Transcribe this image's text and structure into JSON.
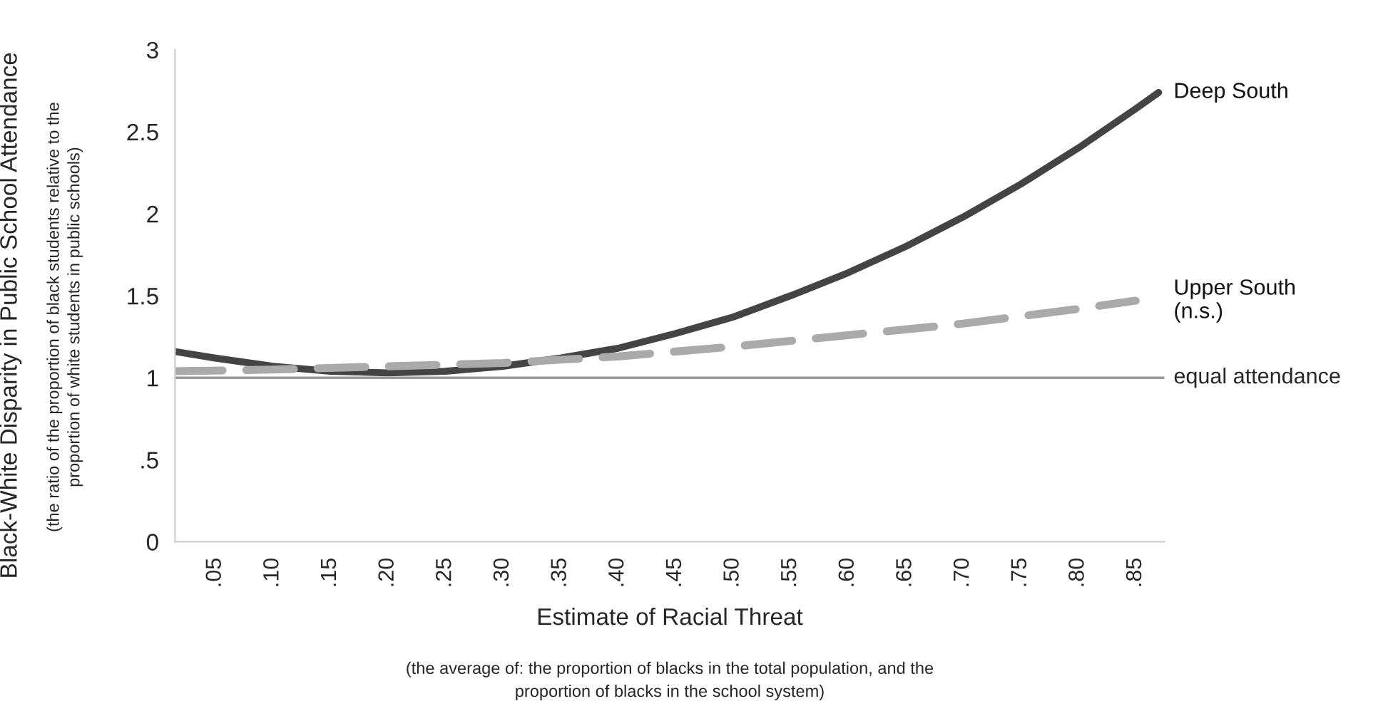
{
  "chart_data": {
    "type": "line",
    "xlabel": "Estimate of Racial Threat",
    "ylabel": "Black-White Disparity in Public School Attendance",
    "annotations": [
      "(the ratio of the proportion of black students relative to the\nproportion of white students in public schools)",
      "(the average of: the proportion of blacks in the total population, and the\nproportion of blacks in the school system)"
    ],
    "x": [
      0.015,
      0.05,
      0.1,
      0.15,
      0.2,
      0.25,
      0.3,
      0.35,
      0.4,
      0.45,
      0.5,
      0.55,
      0.6,
      0.65,
      0.7,
      0.75,
      0.8,
      0.85,
      0.87
    ],
    "series": [
      {
        "name": "Deep South",
        "color": "#444444",
        "line_style": "solid",
        "values": [
          1.16,
          1.12,
          1.07,
          1.04,
          1.03,
          1.04,
          1.07,
          1.12,
          1.18,
          1.27,
          1.37,
          1.5,
          1.64,
          1.8,
          1.98,
          2.18,
          2.4,
          2.64,
          2.74
        ]
      },
      {
        "name": "Upper South\n(n.s.)",
        "color": "#aaaaaa",
        "line_style": "dashed",
        "x": [
          0.015,
          0.1,
          0.2,
          0.3,
          0.4,
          0.5,
          0.6,
          0.7,
          0.8,
          0.85
        ],
        "values": [
          1.04,
          1.05,
          1.07,
          1.09,
          1.13,
          1.19,
          1.26,
          1.33,
          1.42,
          1.47
        ]
      }
    ],
    "ref_lines": [
      {
        "axis": "y",
        "value": 1,
        "label": "equal attendance",
        "color": "#999999"
      }
    ],
    "xlim": [
      0.015,
      0.875
    ],
    "xticks": [
      {
        "value": 0.05,
        "label": ".05"
      },
      {
        "value": 0.1,
        "label": ".10"
      },
      {
        "value": 0.15,
        "label": ".15"
      },
      {
        "value": 0.2,
        "label": ".20"
      },
      {
        "value": 0.25,
        "label": ".25"
      },
      {
        "value": 0.3,
        "label": ".30"
      },
      {
        "value": 0.35,
        "label": ".35"
      },
      {
        "value": 0.4,
        "label": ".40"
      },
      {
        "value": 0.45,
        "label": ".45"
      },
      {
        "value": 0.5,
        "label": ".50"
      },
      {
        "value": 0.55,
        "label": ".55"
      },
      {
        "value": 0.6,
        "label": ".60"
      },
      {
        "value": 0.65,
        "label": ".65"
      },
      {
        "value": 0.7,
        "label": ".70"
      },
      {
        "value": 0.75,
        "label": ".75"
      },
      {
        "value": 0.8,
        "label": ".80"
      },
      {
        "value": 0.85,
        "label": ".85"
      }
    ],
    "ylim": [
      0,
      3
    ],
    "yticks": [
      0,
      {
        "value": 0.5,
        "label": ".5"
      },
      1,
      1.5,
      2,
      2.5,
      3
    ],
    "grid": false,
    "legend": false,
    "marker": "none"
  }
}
